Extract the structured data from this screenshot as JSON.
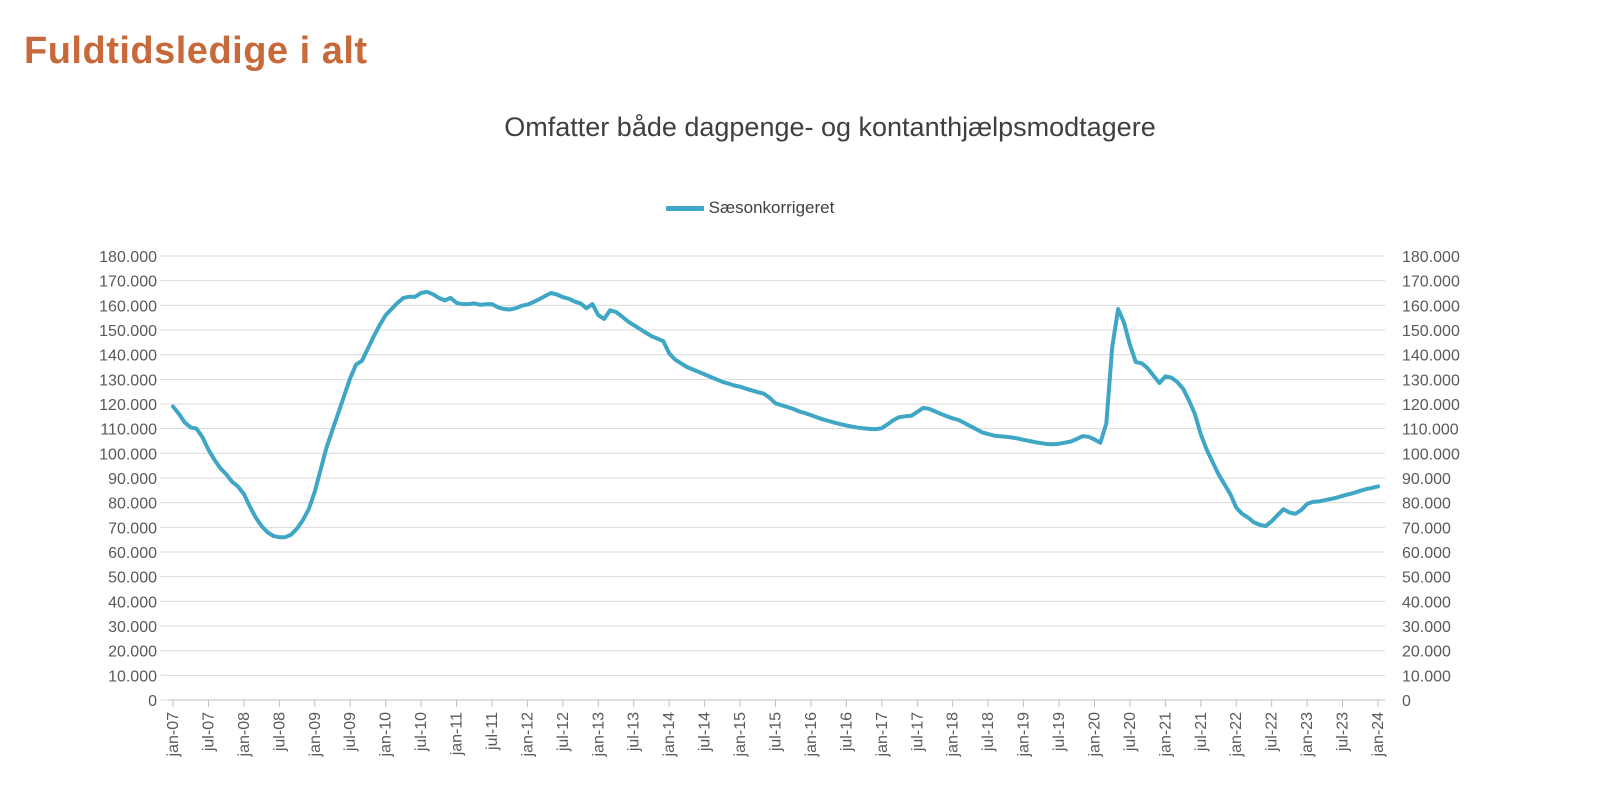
{
  "header": {
    "title": "Fuldtidsledige i alt"
  },
  "chart_data": {
    "type": "line",
    "title": "Fuldtidsledige i alt",
    "subtitle": "Omfatter både dagpenge- og kontanthjælpsmodtagere",
    "x_frequency": "monthly",
    "x_range": [
      "jan-07",
      "jan-24"
    ],
    "x_tick_labels": [
      "jan-07",
      "jul-07",
      "jan-08",
      "jul-08",
      "jan-09",
      "jul-09",
      "jan-10",
      "jul-10",
      "jan-11",
      "jul-11",
      "jan-12",
      "jul-12",
      "jan-13",
      "jul-13",
      "jan-14",
      "jul-14",
      "jan-15",
      "jul-15",
      "jan-16",
      "jul-16",
      "jan-17",
      "jul-17",
      "jan-18",
      "jul-18",
      "jan-19",
      "jul-19",
      "jan-20",
      "jul-20",
      "jan-21",
      "jul-21",
      "jan-22",
      "jul-22",
      "jan-23",
      "jul-23",
      "jan-24"
    ],
    "ylim": [
      0,
      180000
    ],
    "y_tick_step": 10000,
    "y_tick_labels": [
      "0",
      "10.000",
      "20.000",
      "30.000",
      "40.000",
      "50.000",
      "60.000",
      "70.000",
      "80.000",
      "90.000",
      "100.000",
      "110.000",
      "120.000",
      "130.000",
      "140.000",
      "150.000",
      "160.000",
      "170.000",
      "180.000"
    ],
    "grid": "horizontal",
    "legend_position": "top-center",
    "y_axis_sides": [
      "left",
      "right"
    ],
    "colors": {
      "series": "#3FA6C6",
      "title": "#C8693B",
      "subtitle_text": "#3F3F3F",
      "tick_text": "#595959",
      "gridline": "#D9D9D9",
      "axis_line": "#BFBFBF"
    },
    "series": [
      {
        "name": "Sæsonkorrigeret",
        "color": "#3FA6C6",
        "values": [
          119000,
          116000,
          112500,
          110500,
          110000,
          106500,
          101500,
          97500,
          94000,
          91500,
          88500,
          86500,
          83500,
          78500,
          74000,
          70500,
          68000,
          66500,
          66000,
          66000,
          67000,
          69500,
          73000,
          77500,
          84500,
          93500,
          102500,
          109500,
          116500,
          123500,
          130500,
          136000,
          137500,
          142500,
          147500,
          152000,
          156000,
          158500,
          161000,
          163000,
          163500,
          163500,
          165000,
          165500,
          164500,
          163000,
          162000,
          163000,
          161000,
          160500,
          160500,
          160800,
          160200,
          160400,
          160500,
          159200,
          158500,
          158300,
          158800,
          159800,
          160300,
          161300,
          162500,
          163800,
          165000,
          164400,
          163300,
          162700,
          161500,
          160800,
          158800,
          160500,
          156000,
          154500,
          158000,
          157300,
          155500,
          153500,
          152000,
          150500,
          149000,
          147500,
          146500,
          145500,
          140500,
          138000,
          136500,
          135000,
          134000,
          133000,
          132000,
          131000,
          130000,
          129000,
          128300,
          127500,
          127000,
          126200,
          125500,
          124800,
          124200,
          122500,
          120300,
          119500,
          118800,
          118000,
          117000,
          116300,
          115500,
          114600,
          113800,
          113100,
          112400,
          111800,
          111300,
          110800,
          110400,
          110100,
          109900,
          109800,
          110200,
          111800,
          113500,
          114700,
          115000,
          115200,
          116800,
          118400,
          118000,
          117000,
          116000,
          115000,
          114200,
          113500,
          112300,
          111000,
          109800,
          108500,
          107800,
          107200,
          106900,
          106700,
          106400,
          106000,
          105500,
          105000,
          104500,
          104100,
          103800,
          103700,
          103900,
          104300,
          104800,
          105800,
          107000,
          106700,
          105600,
          104300,
          112000,
          143000,
          158500,
          153000,
          144000,
          137000,
          136500,
          134500,
          131500,
          128500,
          131200,
          130700,
          128900,
          126200,
          121400,
          115900,
          107700,
          101500,
          96500,
          91500,
          87500,
          83500,
          78000,
          75500,
          74000,
          72000,
          71000,
          70500,
          72500,
          75000,
          77300,
          76000,
          75500,
          77000,
          79500,
          80300,
          80500,
          81000,
          81500,
          82000,
          82800,
          83400,
          84000,
          84800,
          85500,
          86000,
          86600
        ]
      }
    ]
  }
}
